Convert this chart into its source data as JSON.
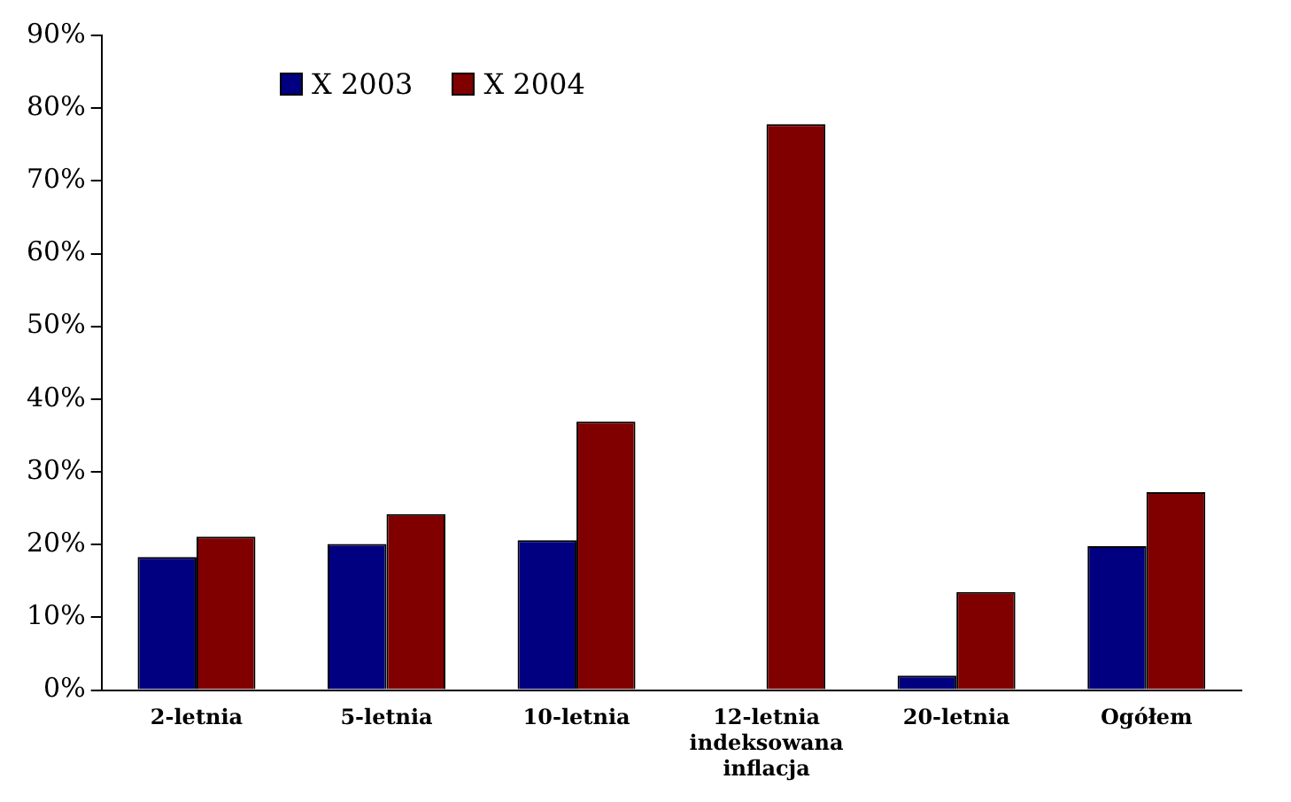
{
  "chart_data": {
    "type": "bar",
    "categories": [
      "2-letnia",
      "5-letnia",
      "10-letnia",
      "12-letnia indeksowana inflacja",
      "20-letnia",
      "Ogółem"
    ],
    "series": [
      {
        "name": "X 2003",
        "color": "#000080",
        "values": [
          18.3,
          20.1,
          20.6,
          null,
          2.0,
          19.8
        ]
      },
      {
        "name": "X 2004",
        "color": "#800000",
        "values": [
          21.1,
          24.2,
          36.9,
          77.8,
          13.5,
          27.2
        ]
      }
    ],
    "ylim": [
      0,
      90
    ],
    "yticks": [
      {
        "value": 0,
        "label": "0%"
      },
      {
        "value": 10,
        "label": "10%"
      },
      {
        "value": 20,
        "label": "20%"
      },
      {
        "value": 30,
        "label": "30%"
      },
      {
        "value": 40,
        "label": "40%"
      },
      {
        "value": 50,
        "label": "50%"
      },
      {
        "value": 60,
        "label": "60%"
      },
      {
        "value": 70,
        "label": "70%"
      },
      {
        "value": 80,
        "label": "80%"
      },
      {
        "value": 90,
        "label": "90%"
      }
    ],
    "grid": false,
    "legend": "top left"
  }
}
